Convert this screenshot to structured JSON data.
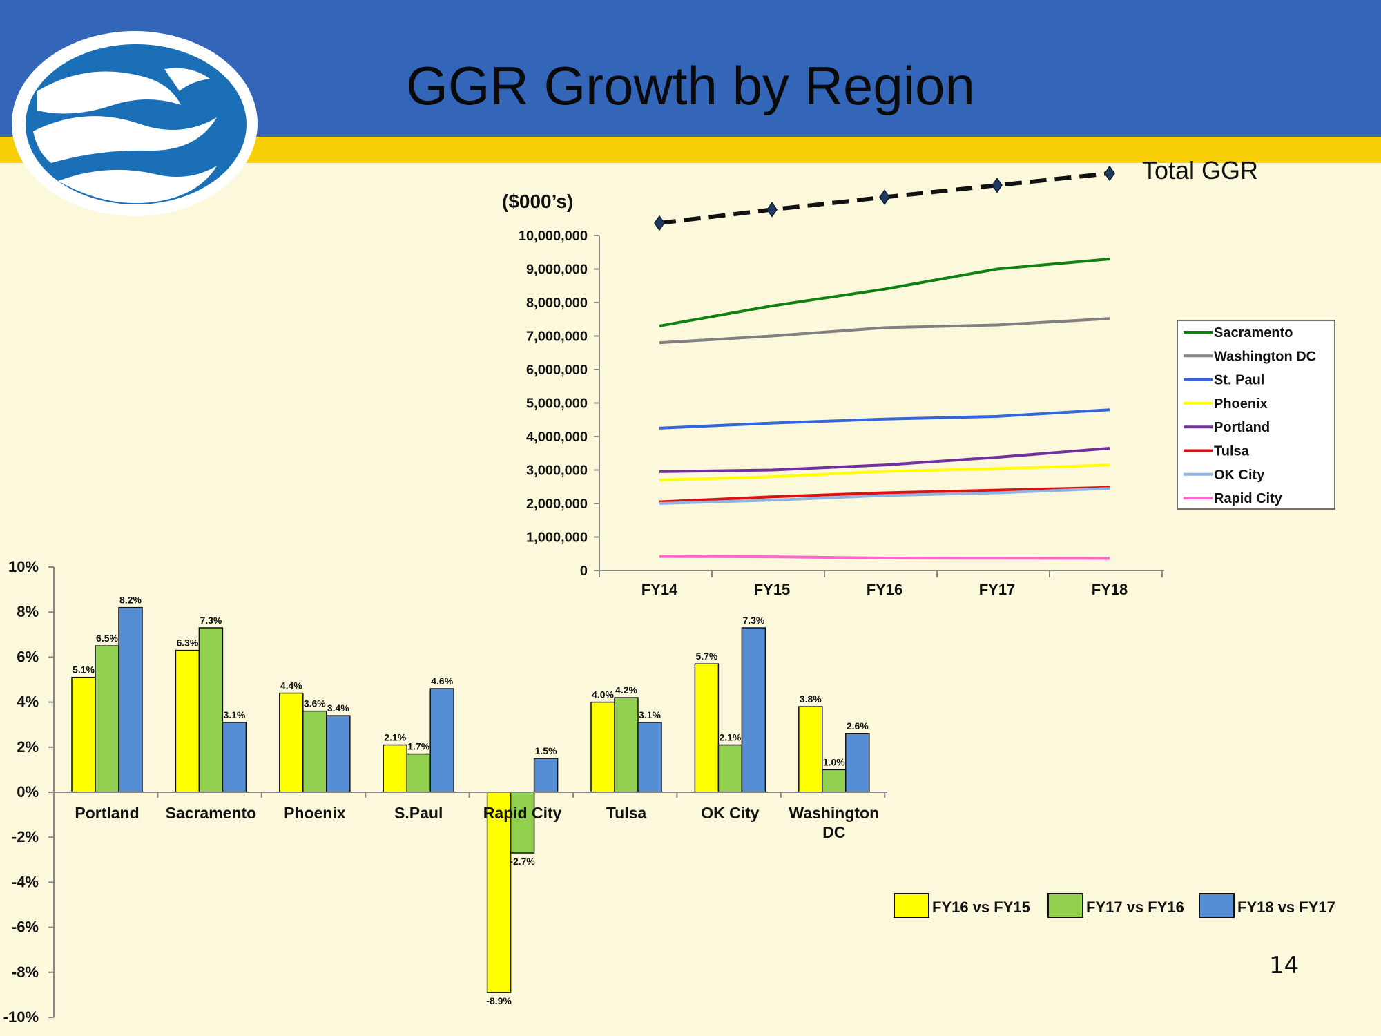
{
  "slide": {
    "title": "GGR Growth by Region",
    "page_number": "14"
  },
  "chart_data": [
    {
      "type": "line",
      "title": "",
      "unit_label": "($000’s)",
      "xlabel": "",
      "ylabel": "",
      "categories": [
        "FY14",
        "FY15",
        "FY16",
        "FY17",
        "FY18"
      ],
      "ylim": [
        0,
        10000000
      ],
      "yticks": [
        0,
        1000000,
        2000000,
        3000000,
        4000000,
        5000000,
        6000000,
        7000000,
        8000000,
        9000000,
        10000000
      ],
      "ytick_labels": [
        "0",
        "1,000,000",
        "2,000,000",
        "3,000,000",
        "4,000,000",
        "5,000,000",
        "6,000,000",
        "7,000,000",
        "8,000,000",
        "9,000,000",
        "10,000,000"
      ],
      "grid": false,
      "legend_position": "right",
      "series": [
        {
          "name": "Sacramento",
          "color": "#108010",
          "values": [
            7300000,
            7900000,
            8400000,
            9000000,
            9300000
          ]
        },
        {
          "name": "Washington DC",
          "color": "#808080",
          "values": [
            6800000,
            7000000,
            7250000,
            7330000,
            7520000
          ]
        },
        {
          "name": "St. Paul",
          "color": "#3366dd",
          "values": [
            4250000,
            4400000,
            4520000,
            4600000,
            4800000
          ]
        },
        {
          "name": "Phoenix",
          "color": "#ffff00",
          "values": [
            2700000,
            2800000,
            2960000,
            3040000,
            3150000
          ]
        },
        {
          "name": "Portland",
          "color": "#7030a0",
          "values": [
            2950000,
            3000000,
            3150000,
            3380000,
            3650000
          ]
        },
        {
          "name": "Tulsa",
          "color": "#dd1111",
          "values": [
            2050000,
            2200000,
            2320000,
            2400000,
            2480000
          ]
        },
        {
          "name": "OK City",
          "color": "#8fb4e3",
          "values": [
            2000000,
            2100000,
            2240000,
            2320000,
            2450000
          ]
        },
        {
          "name": "Rapid City",
          "color": "#ff66cc",
          "values": [
            420000,
            410000,
            370000,
            365000,
            360000
          ]
        }
      ],
      "total_series": {
        "name": "Total GGR",
        "label": "Total GGR",
        "style": "dashed black with diamond markers",
        "marker_color": "#1f3a60",
        "values_relative": [
          0,
          0.26,
          0.5,
          0.73,
          0.96
        ]
      }
    },
    {
      "type": "bar",
      "title": "",
      "xlabel": "",
      "ylabel": "",
      "categories": [
        "Portland",
        "Sacramento",
        "Phoenix",
        "S.Paul",
        "Rapid City",
        "Tulsa",
        "OK City",
        "Washington DC"
      ],
      "category_lines": [
        [
          "Portland"
        ],
        [
          "Sacramento"
        ],
        [
          "Phoenix"
        ],
        [
          "S.Paul"
        ],
        [
          "Rapid City"
        ],
        [
          "Tulsa"
        ],
        [
          "OK City"
        ],
        [
          "Washington",
          "DC"
        ]
      ],
      "ylim": [
        -10,
        10
      ],
      "yticks": [
        -10,
        -8,
        -6,
        -4,
        -2,
        0,
        2,
        4,
        6,
        8,
        10
      ],
      "ytick_labels": [
        "-10%",
        "-8%",
        "-6%",
        "-4%",
        "-2%",
        "0%",
        "2%",
        "4%",
        "6%",
        "8%",
        "10%"
      ],
      "grid": false,
      "legend_position": "bottom-right",
      "series": [
        {
          "name": "FY16 vs FY15",
          "color": "#ffff00",
          "values": [
            5.1,
            6.3,
            4.4,
            2.1,
            -8.9,
            4.0,
            5.7,
            3.8
          ],
          "labels": [
            "5.1%",
            "6.3%",
            "4.4%",
            "2.1%",
            "-8.9%",
            "4.0%",
            "5.7%",
            "3.8%"
          ]
        },
        {
          "name": "FY17 vs FY16",
          "color": "#92d050",
          "values": [
            6.5,
            7.3,
            3.6,
            1.7,
            -2.7,
            4.2,
            2.1,
            1.0
          ],
          "labels": [
            "6.5%",
            "7.3%",
            "3.6%",
            "1.7%",
            "-2.7%",
            "4.2%",
            "2.1%",
            "1.0%"
          ]
        },
        {
          "name": "FY18 vs FY17",
          "color": "#558ed5",
          "values": [
            8.2,
            3.1,
            3.4,
            4.6,
            1.5,
            3.1,
            7.3,
            2.6
          ],
          "labels": [
            "8.2%",
            "3.1%",
            "3.4%",
            "4.6%",
            "1.5%",
            "3.1%",
            "7.3%",
            "2.6%"
          ]
        }
      ]
    }
  ]
}
